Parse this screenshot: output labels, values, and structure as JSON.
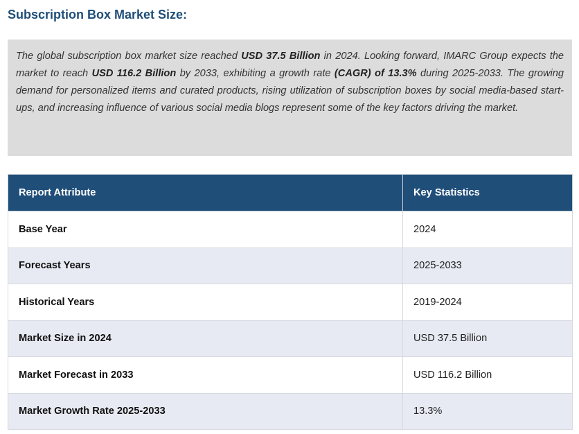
{
  "heading": "Subscription Box Market Size:",
  "summary": {
    "seg1": "The global subscription box market size reached ",
    "b1": "USD 37.5 Billion",
    "seg2": " in 2024. Looking forward, IMARC Group expects the market to reach ",
    "b2": "USD 116.2 Billion",
    "seg3": " by 2033, exhibiting a growth rate ",
    "b3": "(CAGR) of 13.3%",
    "seg4": " during 2025-2033. The growing demand for personalized items and curated products, rising utilization of subscription boxes by social media-based start-ups, and increasing influence of various social media blogs represent some of the key factors driving the market."
  },
  "table": {
    "headers": [
      "Report Attribute",
      "Key Statistics"
    ],
    "rows": [
      {
        "attribute": "Base Year",
        "value": "2024"
      },
      {
        "attribute": "Forecast Years",
        "value": "2025-2033"
      },
      {
        "attribute": "Historical Years",
        "value": "2019-2024"
      },
      {
        "attribute": "Market Size in 2024",
        "value": "USD 37.5 Billion"
      },
      {
        "attribute": "Market Forecast in 2033",
        "value": "USD 116.2 Billion"
      },
      {
        "attribute": "Market Growth Rate 2025-2033",
        "value": "13.3%"
      }
    ]
  },
  "colors": {
    "heading": "#1f4e79",
    "header_bg": "#1f4e79",
    "alt_row_bg": "#e8eaf3",
    "summary_bg": "#dcdcdc"
  }
}
